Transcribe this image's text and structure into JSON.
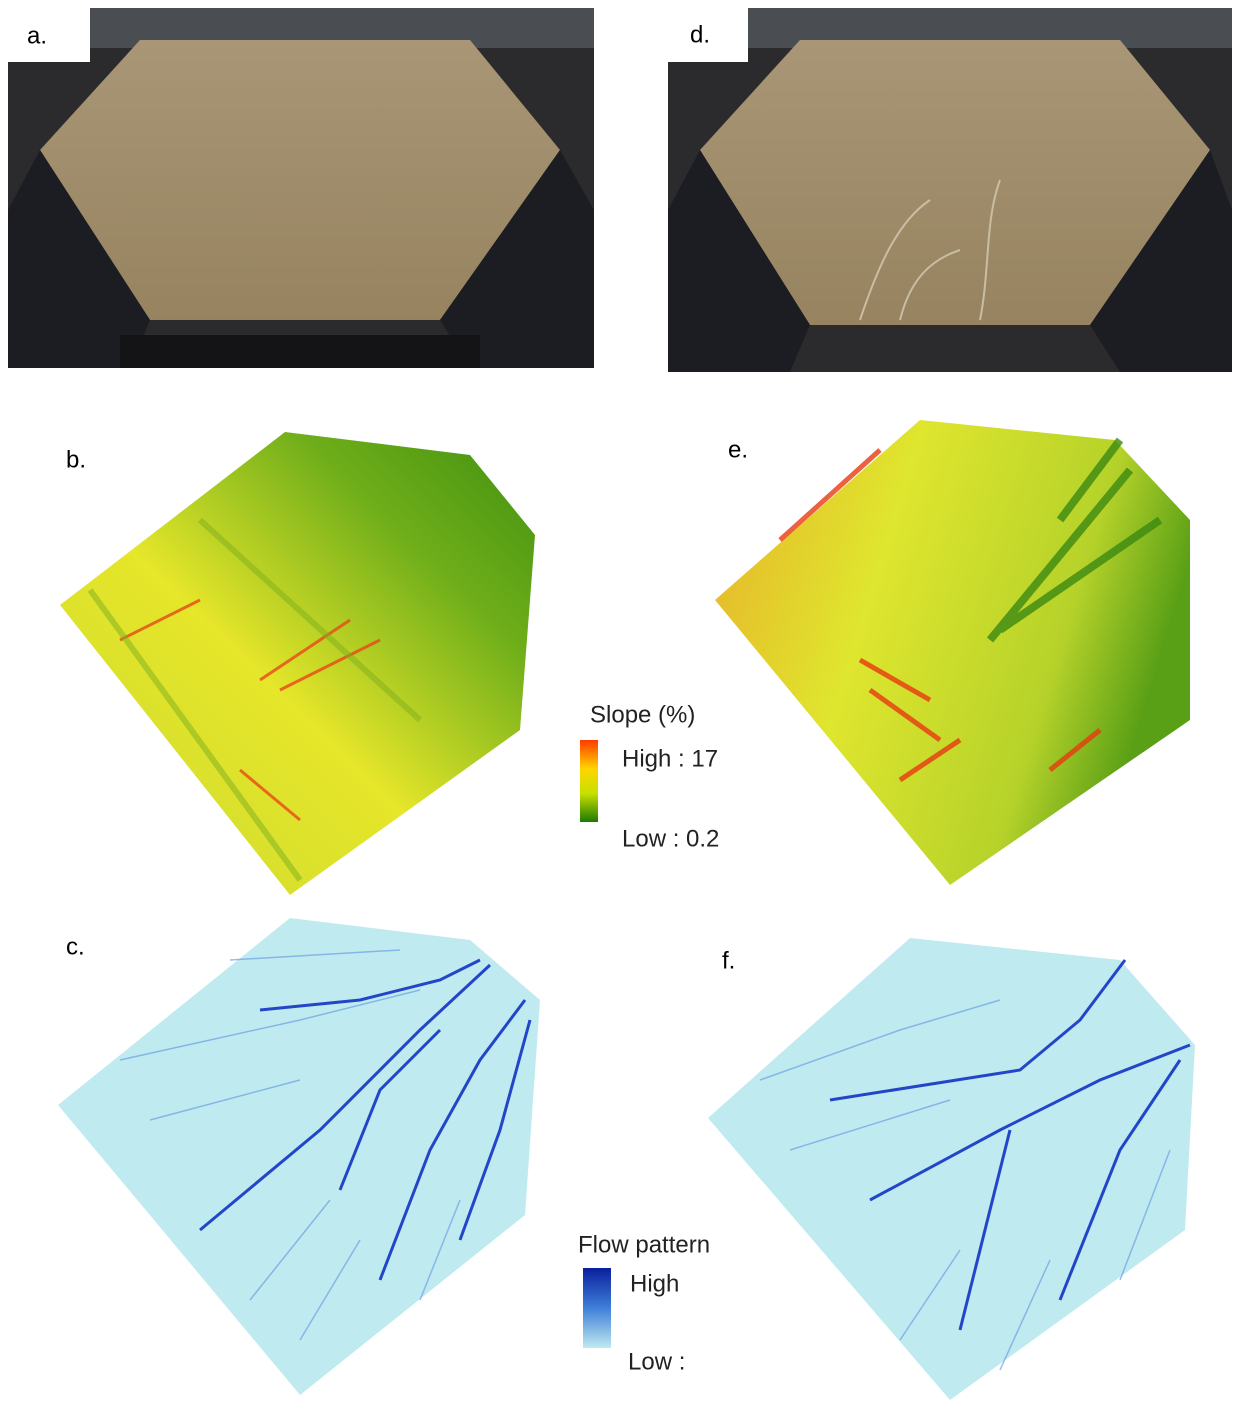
{
  "panels": [
    {
      "label": "a."
    },
    {
      "label": "b."
    },
    {
      "label": "c."
    },
    {
      "label": "d."
    },
    {
      "label": "e."
    },
    {
      "label": "f."
    }
  ],
  "legends": {
    "slope": {
      "title": "Slope (%)",
      "high": "High : 17",
      "low": "Low : 0.2"
    },
    "flow": {
      "title": "Flow pattern",
      "high": "High",
      "low": "Low :"
    }
  }
}
